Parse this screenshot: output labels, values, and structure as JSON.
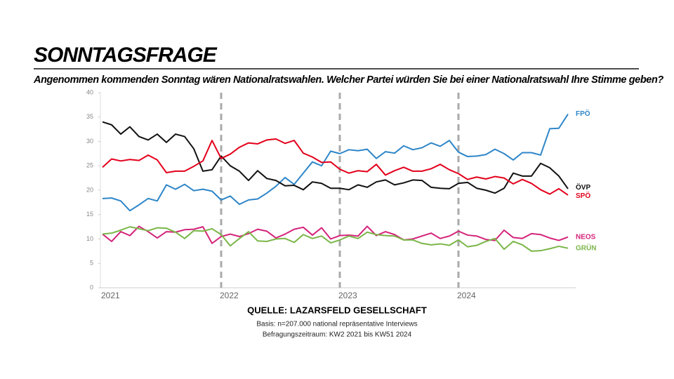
{
  "chart_data": {
    "type": "line",
    "title": "SONNTAGSFRAGE",
    "subtitle": "Angenommen kommenden Sonntag wären Nationalratswahlen. Welcher Partei würden Sie bei einer Nationalratswahl Ihre Stimme geben?",
    "source": "QUELLE: LAZARSFELD GESELLSCHAFT",
    "basis": "Basis: n=207.000 national repräsentative Interviews",
    "period": "Befragungszeitraum: KW2 2021 bis KW51 2024",
    "categories": [
      "2021",
      null,
      null,
      null,
      null,
      null,
      null,
      null,
      null,
      null,
      null,
      null,
      null,
      "2022",
      null,
      null,
      null,
      null,
      null,
      null,
      null,
      null,
      null,
      null,
      null,
      null,
      "2023",
      null,
      null,
      null,
      null,
      null,
      null,
      null,
      null,
      null,
      null,
      null,
      null,
      "2024",
      null,
      null,
      null,
      null,
      null,
      null,
      null,
      null,
      null,
      null,
      null,
      null
    ],
    "ylim": [
      0,
      40
    ],
    "yticks": [
      0,
      5,
      10,
      15,
      20,
      25,
      30,
      35,
      40
    ],
    "series": [
      {
        "name": "FPÖ",
        "color": "#2e86c8",
        "values": [
          18.3,
          18.4,
          17.8,
          15.8,
          17,
          18.3,
          17.8,
          21.1,
          20.2,
          21.2,
          19.9,
          20.2,
          19.8,
          18,
          18.8,
          17.1,
          18,
          18.2,
          19.4,
          20.8,
          22.6,
          21.2,
          23.5,
          25.8,
          25,
          28,
          27.5,
          28.3,
          28.1,
          28.4,
          26.5,
          27.9,
          27.6,
          29.1,
          28.3,
          28.7,
          29.7,
          29,
          30.2,
          27.8,
          26.9,
          27,
          27.3,
          28.4,
          27.5,
          26.2,
          27.7,
          27.7,
          27.2,
          32.6,
          32.7,
          35.6
        ]
      },
      {
        "name": "ÖVP",
        "color": "#111111",
        "values": [
          34,
          33.4,
          31.5,
          33,
          31,
          30.3,
          31.5,
          29.8,
          31.5,
          31,
          28.5,
          23.9,
          24.2,
          27,
          25,
          23.9,
          22,
          24,
          22.4,
          22,
          20.9,
          21,
          20.1,
          21.7,
          21.4,
          20.4,
          20.4,
          20.1,
          21.1,
          20.6,
          21.7,
          22.1,
          21.1,
          21.5,
          22.1,
          22,
          20.6,
          20.4,
          20.3,
          21.4,
          21.6,
          20.4,
          20,
          19.4,
          20.4,
          23.5,
          22.9,
          22.9,
          25.5,
          24.6,
          22.9,
          20.3
        ]
      },
      {
        "name": "SPÖ",
        "color": "#e3001b",
        "values": [
          24.7,
          26.4,
          26,
          26.3,
          26.1,
          27.2,
          26.2,
          23.6,
          23.9,
          23.9,
          24.9,
          26,
          30.2,
          26.5,
          27.4,
          28.8,
          29.7,
          29.5,
          30.3,
          30.5,
          29.6,
          30.2,
          27.6,
          26.8,
          25.7,
          25.8,
          24.3,
          23.5,
          24,
          23.8,
          25.3,
          23.1,
          24,
          24.7,
          23.9,
          23.9,
          24.4,
          25.3,
          24.2,
          23.4,
          22.2,
          22.7,
          22.3,
          22.8,
          22.5,
          21.3,
          22.2,
          21.4,
          20.1,
          19.2,
          20.3,
          19
        ]
      },
      {
        "name": "NEOS",
        "color": "#d4237a",
        "values": [
          11,
          9.5,
          11.5,
          10.7,
          12.6,
          11.5,
          10.2,
          11.5,
          11.4,
          11.9,
          12,
          12.5,
          9.1,
          10.5,
          11,
          10.5,
          11.1,
          12,
          11.6,
          10.2,
          11,
          12,
          12.4,
          10.8,
          12.3,
          10,
          10.7,
          10.8,
          10.6,
          12.6,
          10.7,
          11.5,
          10.9,
          9.8,
          10,
          10.6,
          11.2,
          10.1,
          10.6,
          11.6,
          10.8,
          10.6,
          9.9,
          9.7,
          11.8,
          10.3,
          10.1,
          11.1,
          10.9,
          10.2,
          9.7,
          10.4
        ]
      },
      {
        "name": "GRÜN",
        "color": "#7ab648",
        "values": [
          11,
          11.2,
          11.8,
          12.5,
          12.1,
          11.7,
          12.3,
          12.2,
          11.4,
          10.1,
          11.7,
          11.6,
          12.1,
          10.9,
          8.6,
          10.1,
          11.5,
          9.6,
          9.5,
          10,
          10.1,
          9.3,
          10.9,
          10.1,
          10.6,
          9.2,
          9.8,
          10.6,
          10.1,
          11.4,
          10.9,
          10.7,
          10.6,
          9.8,
          9.8,
          9.1,
          8.8,
          9,
          8.7,
          9.8,
          8.4,
          8.7,
          9.5,
          10.1,
          7.9,
          9.5,
          8.8,
          7.5,
          7.6,
          8,
          8.5,
          8.1
        ]
      }
    ]
  }
}
